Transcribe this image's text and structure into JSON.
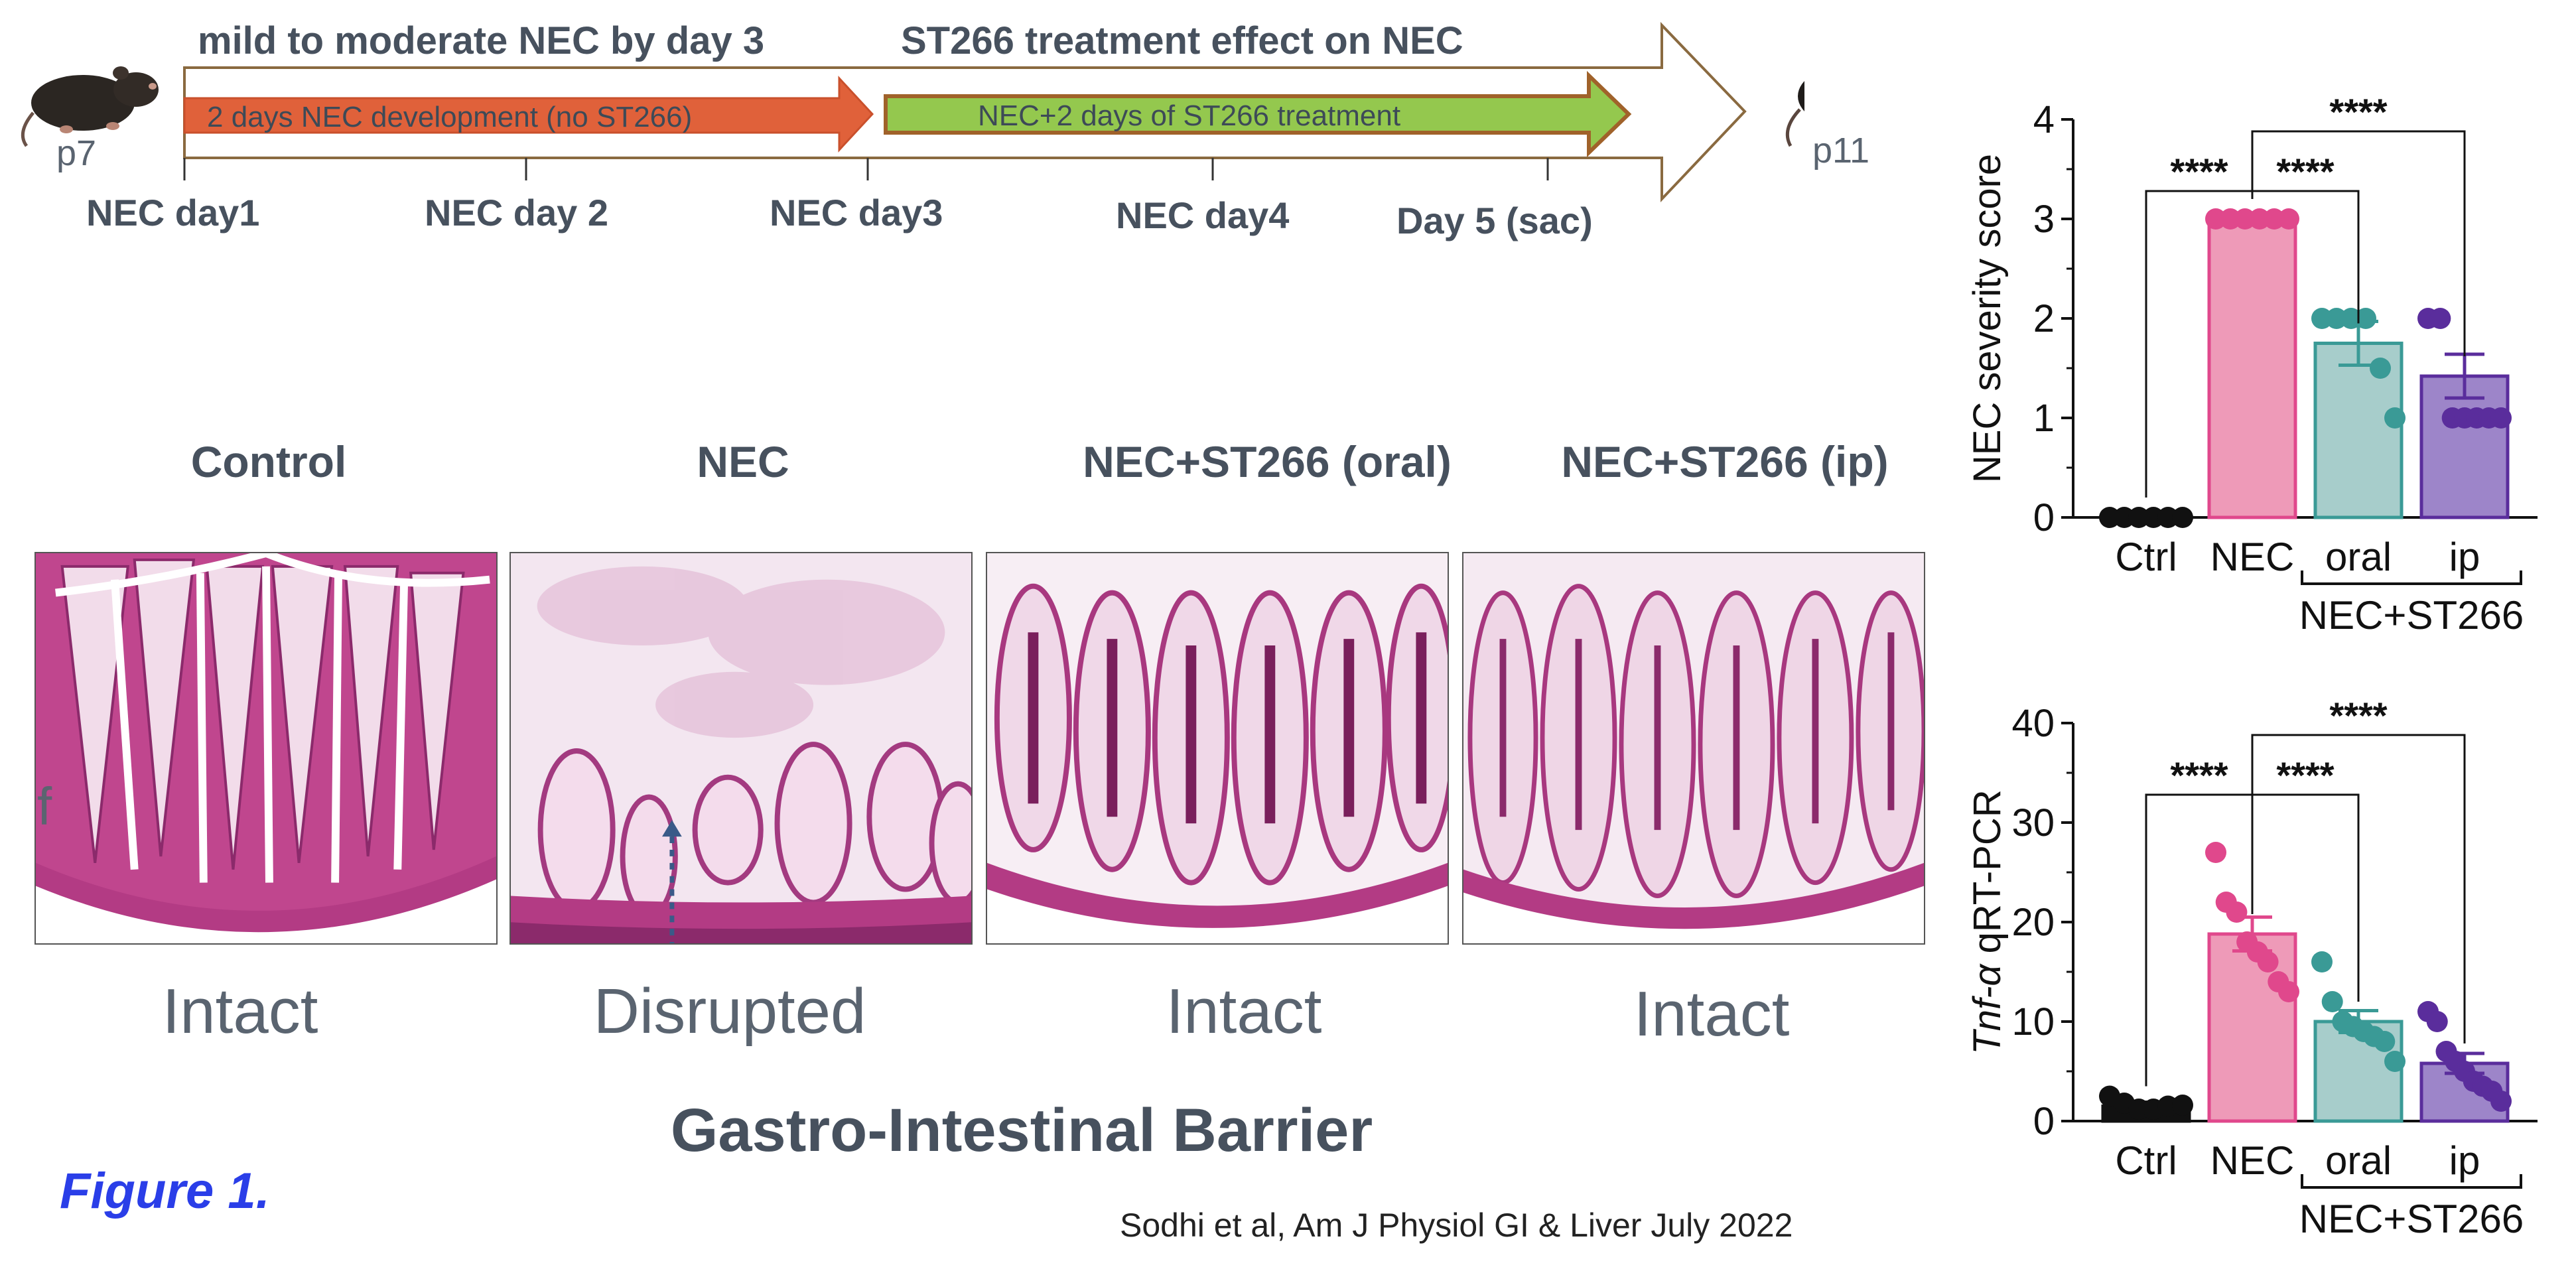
{
  "timeline": {
    "stage1_header": "mild to moderate NEC by day 3",
    "stage2_header": "ST266 treatment effect on NEC",
    "stage1_bar": "2 days NEC development (no ST266)",
    "stage2_bar": "NEC+2 days of ST266 treatment",
    "start_age": "p7",
    "end_age": "p11",
    "day_labels": [
      "NEC day1",
      "NEC day 2",
      "NEC day3",
      "NEC day4",
      "Day 5 (sac)"
    ],
    "colors": {
      "stage1": "#e0613a",
      "stage2": "#94c84e",
      "stage2_border": "#a0622a",
      "arrow_border": "#8a6a40"
    }
  },
  "histology": {
    "panel_titles": [
      "Control",
      "NEC",
      "NEC+ST266 (oral)",
      "NEC+ST266 (ip)"
    ],
    "barrier_labels": [
      "Intact",
      "Disrupted",
      "Intact",
      "Intact"
    ],
    "inset_letter": "f",
    "section_title": "Gastro-Intestinal Barrier",
    "colors": {
      "tissue": "#c0468e",
      "background": "#f3e6f0",
      "nuclei": "#7a1f5c"
    }
  },
  "figure_label": "Figure 1.",
  "citation": "Sodhi et al, Am J Physiol GI & Liver July 2022",
  "chart_data": [
    {
      "type": "bar",
      "ylabel": "NEC severity score",
      "ylim": [
        0,
        4
      ],
      "yticks": [
        "0",
        "1",
        "2",
        "3",
        "4"
      ],
      "categories": [
        "Ctrl",
        "NEC",
        "oral",
        "ip"
      ],
      "group_label": "NEC+ST266",
      "values": [
        0,
        3,
        1.75,
        1.42
      ],
      "sem": [
        0,
        0,
        0.22,
        0.22
      ],
      "points": [
        [
          0,
          0,
          0,
          0,
          0,
          0
        ],
        [
          3,
          3,
          3,
          3,
          3,
          3
        ],
        [
          2,
          2,
          2,
          2,
          1.5,
          1
        ],
        [
          2,
          2,
          1,
          1,
          1,
          1,
          1
        ]
      ],
      "colors": [
        "#111111",
        "#e0488c",
        "#3a9a96",
        "#5a2d9c"
      ],
      "fills": [
        "#111111",
        "#ee9ab8",
        "#a7cdcb",
        "#9d85c9"
      ],
      "significance": [
        {
          "from": 0,
          "to": 1,
          "label": "****"
        },
        {
          "from": 1,
          "to": 2,
          "label": "****"
        },
        {
          "from": 1,
          "to": 3,
          "label": "****"
        }
      ]
    },
    {
      "type": "bar",
      "ylabel_italic": "Tnf-α",
      "ylabel": " qRT-PCR",
      "ylim": [
        0,
        40
      ],
      "yticks": [
        "0",
        "10",
        "20",
        "30",
        "40"
      ],
      "categories": [
        "Ctrl",
        "NEC",
        "oral",
        "ip"
      ],
      "group_label": "NEC+ST266",
      "values": [
        1.5,
        18.8,
        10,
        5.8
      ],
      "sem": [
        0.4,
        1.7,
        1.1,
        1.0
      ],
      "points": [
        [
          2.5,
          1.8,
          1.2,
          1.2,
          1.5,
          1.6
        ],
        [
          27,
          22,
          21,
          18,
          17,
          16,
          14,
          13
        ],
        [
          16,
          12,
          10,
          9.5,
          9,
          8.5,
          8,
          6
        ],
        [
          11,
          10,
          7,
          6,
          5,
          4,
          3.5,
          3,
          2
        ]
      ],
      "colors": [
        "#111111",
        "#e0488c",
        "#3a9a96",
        "#5a2d9c"
      ],
      "fills": [
        "#111111",
        "#ee9ab8",
        "#a7cdcb",
        "#9d85c9"
      ],
      "significance": [
        {
          "from": 0,
          "to": 1,
          "label": "****"
        },
        {
          "from": 1,
          "to": 2,
          "label": "****"
        },
        {
          "from": 1,
          "to": 3,
          "label": "****"
        }
      ]
    }
  ]
}
